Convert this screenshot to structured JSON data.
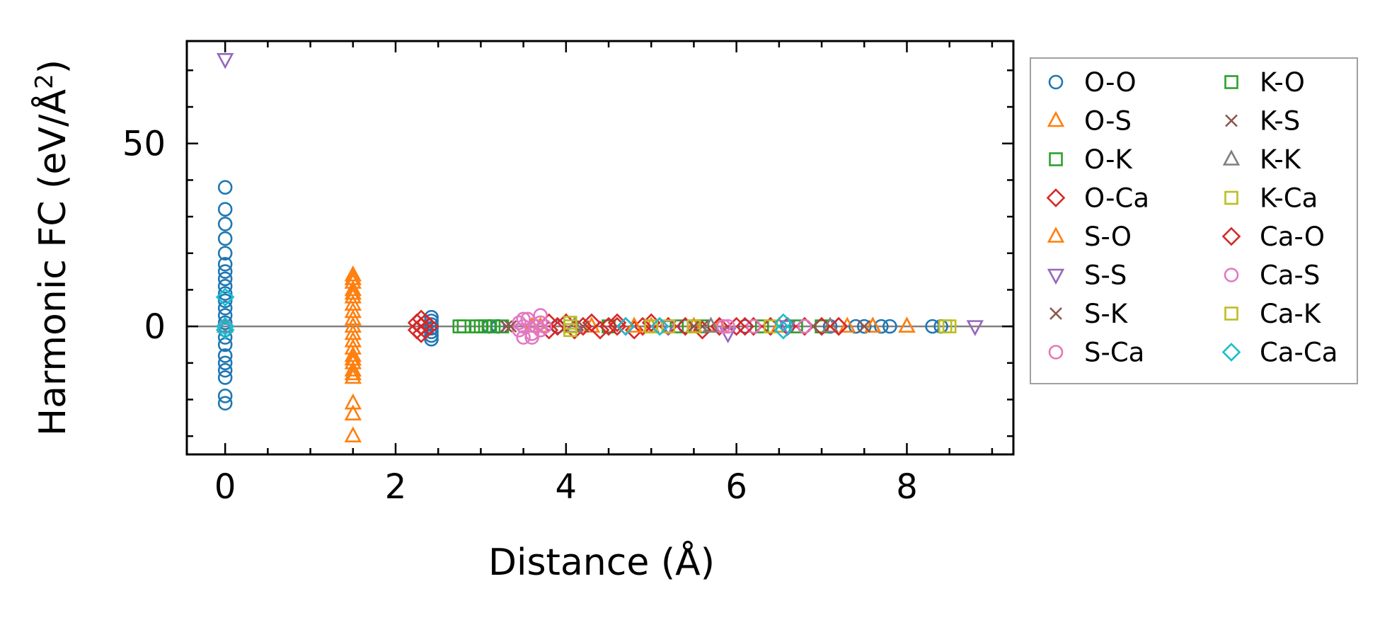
{
  "chart_data": {
    "type": "scatter",
    "title": "",
    "xlabel": "Distance (Å)",
    "ylabel_text": "Harmonic FC (eV/Å",
    "ylabel_sup": "2",
    "ylabel_close": ")",
    "xlim": [
      -0.45,
      9.25
    ],
    "ylim": [
      -35,
      78
    ],
    "xticks": [
      0,
      2,
      4,
      6,
      8
    ],
    "xtick_labels": [
      "0",
      "2",
      "4",
      "6",
      "8"
    ],
    "yticks": [
      0,
      50
    ],
    "ytick_labels": [
      "0",
      "50"
    ],
    "grid": false,
    "legend_position": "outside-right",
    "zero_line": 0,
    "series": [
      {
        "name": "O-O",
        "marker": "circle",
        "color": "#1f77b4",
        "points": [
          [
            0,
            38
          ],
          [
            0,
            32
          ],
          [
            0,
            28
          ],
          [
            0,
            24
          ],
          [
            0,
            20
          ],
          [
            0,
            17
          ],
          [
            0,
            15
          ],
          [
            0,
            13
          ],
          [
            0,
            11
          ],
          [
            0,
            9
          ],
          [
            0,
            7
          ],
          [
            0,
            5
          ],
          [
            0,
            3
          ],
          [
            0,
            1
          ],
          [
            0,
            -1
          ],
          [
            0,
            -3
          ],
          [
            0,
            -5
          ],
          [
            0,
            -8
          ],
          [
            0,
            -10
          ],
          [
            0,
            -12
          ],
          [
            0,
            -14
          ],
          [
            0,
            -19
          ],
          [
            0,
            -21
          ],
          [
            2.42,
            2.5
          ],
          [
            2.42,
            1.5
          ],
          [
            2.42,
            0.5
          ],
          [
            2.42,
            -0.5
          ],
          [
            2.42,
            -1.5
          ],
          [
            2.42,
            -2.5
          ],
          [
            2.42,
            -3.5
          ],
          [
            3.1,
            0
          ],
          [
            3.2,
            0
          ],
          [
            3.9,
            0
          ],
          [
            4.5,
            0
          ],
          [
            5.4,
            0
          ],
          [
            6.1,
            0
          ],
          [
            6.6,
            0
          ],
          [
            7.1,
            0
          ],
          [
            7.4,
            0
          ],
          [
            7.5,
            0
          ],
          [
            7.7,
            0
          ],
          [
            7.8,
            0
          ],
          [
            8.3,
            0
          ],
          [
            8.4,
            0
          ]
        ]
      },
      {
        "name": "O-S",
        "marker": "triangle-up",
        "color": "#ff7f0e",
        "points": [
          [
            1.5,
            14
          ],
          [
            1.5,
            12
          ],
          [
            1.5,
            10
          ],
          [
            1.5,
            8
          ],
          [
            1.5,
            6
          ],
          [
            1.5,
            4
          ],
          [
            1.5,
            2
          ],
          [
            1.5,
            0
          ],
          [
            1.5,
            -2
          ],
          [
            1.5,
            -4
          ],
          [
            1.5,
            -6
          ],
          [
            1.5,
            -8
          ],
          [
            1.5,
            -10
          ],
          [
            1.5,
            -12
          ],
          [
            1.5,
            -14
          ],
          [
            1.5,
            -21
          ],
          [
            1.5,
            -24
          ],
          [
            1.5,
            -30
          ],
          [
            3.6,
            0
          ],
          [
            4.3,
            0
          ],
          [
            5.0,
            0
          ],
          [
            5.8,
            0
          ],
          [
            6.5,
            0
          ],
          [
            7.3,
            0
          ],
          [
            7.6,
            0
          ],
          [
            8.0,
            0
          ]
        ]
      },
      {
        "name": "O-K",
        "marker": "square",
        "color": "#2ca02c",
        "points": [
          [
            2.8,
            0
          ],
          [
            2.95,
            0
          ],
          [
            3.05,
            0
          ],
          [
            3.1,
            0
          ],
          [
            3.25,
            0
          ],
          [
            4.5,
            0
          ],
          [
            5.3,
            0
          ],
          [
            5.6,
            0
          ],
          [
            6.3,
            0
          ],
          [
            7.0,
            0
          ]
        ]
      },
      {
        "name": "O-Ca",
        "marker": "diamond",
        "color": "#d62728",
        "points": [
          [
            2.3,
            2
          ],
          [
            2.3,
            0
          ],
          [
            2.3,
            -2
          ],
          [
            2.35,
            1
          ],
          [
            2.35,
            -1
          ],
          [
            3.8,
            1
          ],
          [
            3.8,
            -1
          ],
          [
            3.9,
            0
          ],
          [
            4.0,
            1
          ],
          [
            4.1,
            -1
          ],
          [
            4.2,
            0
          ],
          [
            4.3,
            1
          ],
          [
            4.4,
            -1
          ],
          [
            4.5,
            0
          ],
          [
            4.6,
            1
          ],
          [
            4.7,
            0
          ],
          [
            4.8,
            -1
          ],
          [
            4.9,
            0
          ],
          [
            5.0,
            1
          ],
          [
            5.2,
            0
          ],
          [
            5.4,
            0
          ],
          [
            5.6,
            -1
          ],
          [
            5.8,
            0
          ],
          [
            6.0,
            0
          ],
          [
            6.2,
            0
          ],
          [
            6.4,
            0
          ],
          [
            6.6,
            0
          ],
          [
            6.8,
            0
          ],
          [
            7.0,
            0
          ],
          [
            7.2,
            0
          ]
        ]
      },
      {
        "name": "S-O",
        "marker": "triangle-up",
        "color": "#ff7f0e",
        "points": [
          [
            1.5,
            13
          ],
          [
            1.5,
            9
          ],
          [
            1.5,
            -9
          ],
          [
            1.5,
            -13
          ],
          [
            3.7,
            0
          ],
          [
            4.8,
            0
          ],
          [
            5.5,
            0
          ],
          [
            7.6,
            0
          ],
          [
            8.0,
            0
          ]
        ]
      },
      {
        "name": "S-S",
        "marker": "triangle-down",
        "color": "#9467bd",
        "points": [
          [
            0,
            73
          ],
          [
            5.2,
            0
          ],
          [
            5.9,
            -2
          ],
          [
            6.6,
            0
          ],
          [
            8.8,
            0
          ]
        ]
      },
      {
        "name": "S-K",
        "marker": "x",
        "color": "#8c564b",
        "points": [
          [
            3.3,
            0
          ],
          [
            4.2,
            0
          ],
          [
            5.5,
            0
          ],
          [
            6.9,
            0
          ],
          [
            7.5,
            0
          ]
        ]
      },
      {
        "name": "S-Ca",
        "marker": "circle",
        "color": "#e377c2",
        "points": [
          [
            3.45,
            1
          ],
          [
            3.45,
            -1
          ],
          [
            3.5,
            0
          ],
          [
            3.5,
            -3
          ],
          [
            3.55,
            2
          ],
          [
            3.6,
            -3
          ],
          [
            3.65,
            0
          ],
          [
            3.7,
            3
          ],
          [
            3.7,
            1
          ],
          [
            3.7,
            -1
          ],
          [
            5.9,
            0
          ],
          [
            6.2,
            0
          ],
          [
            6.8,
            0
          ],
          [
            0,
            0
          ]
        ]
      },
      {
        "name": "K-O",
        "marker": "square",
        "color": "#2ca02c",
        "points": [
          [
            2.75,
            0
          ],
          [
            3.0,
            0
          ],
          [
            3.15,
            0
          ],
          [
            5.5,
            0
          ],
          [
            6.7,
            0
          ]
        ]
      },
      {
        "name": "K-S",
        "marker": "x",
        "color": "#8c564b",
        "points": [
          [
            3.35,
            0
          ],
          [
            5.6,
            0
          ],
          [
            6.9,
            0
          ]
        ]
      },
      {
        "name": "K-K",
        "marker": "triangle-up",
        "color": "#7f7f7f",
        "points": [
          [
            0,
            0
          ],
          [
            4.1,
            0
          ],
          [
            5.7,
            0
          ],
          [
            7.1,
            0
          ]
        ]
      },
      {
        "name": "K-Ca",
        "marker": "square",
        "color": "#bcbd22",
        "points": [
          [
            4.05,
            1
          ],
          [
            4.05,
            -1
          ],
          [
            5.0,
            0
          ],
          [
            5.5,
            0
          ],
          [
            6.4,
            0
          ],
          [
            8.5,
            0
          ]
        ]
      },
      {
        "name": "Ca-O",
        "marker": "diamond",
        "color": "#d62728",
        "points": [
          [
            2.25,
            1
          ],
          [
            2.25,
            -1
          ],
          [
            2.4,
            0
          ],
          [
            4.6,
            0
          ],
          [
            6.1,
            0
          ],
          [
            7.2,
            0
          ]
        ]
      },
      {
        "name": "Ca-S",
        "marker": "circle",
        "color": "#e377c2",
        "points": [
          [
            3.5,
            2
          ],
          [
            3.6,
            -2
          ],
          [
            3.75,
            0
          ],
          [
            5.85,
            0
          ],
          [
            6.8,
            0
          ]
        ]
      },
      {
        "name": "Ca-K",
        "marker": "square",
        "color": "#bcbd22",
        "points": [
          [
            4.05,
            0
          ],
          [
            5.0,
            0
          ],
          [
            5.2,
            0
          ],
          [
            8.45,
            0
          ]
        ]
      },
      {
        "name": "Ca-Ca",
        "marker": "diamond",
        "color": "#17becf",
        "points": [
          [
            0,
            8
          ],
          [
            0,
            0
          ],
          [
            0,
            -1
          ],
          [
            4.7,
            0
          ],
          [
            5.1,
            0
          ],
          [
            6.55,
            1
          ],
          [
            6.55,
            -1
          ]
        ]
      }
    ]
  }
}
